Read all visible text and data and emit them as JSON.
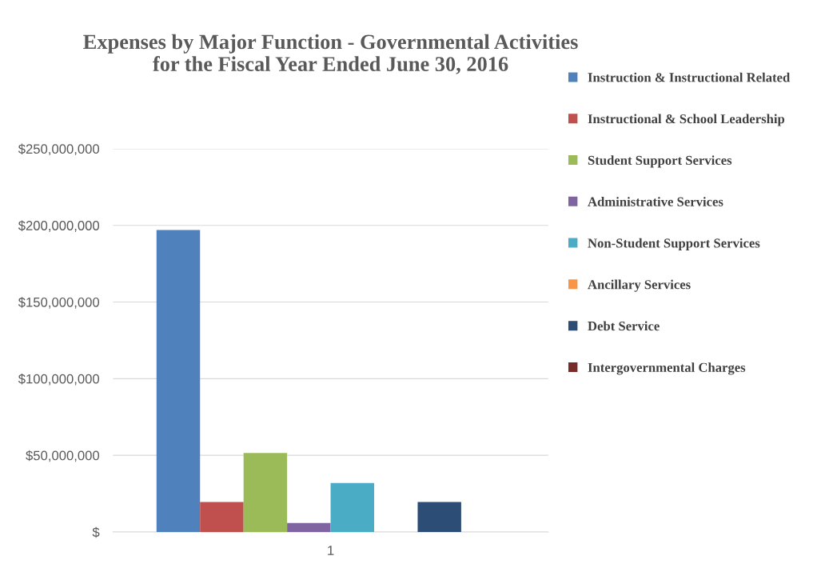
{
  "chart_data": {
    "type": "bar",
    "title": "Expenses by Major Function - Governmental Activities\nfor the Fiscal Year Ended June 30, 2016",
    "categories": [
      "1"
    ],
    "series": [
      {
        "name": "Instruction & Instructional Related",
        "color": "#4f81bd",
        "values": [
          197000000
        ]
      },
      {
        "name": "Instructional & School Leadership",
        "color": "#c0504d",
        "values": [
          19500000
        ]
      },
      {
        "name": "Student Support Services",
        "color": "#9bbb59",
        "values": [
          51500000
        ]
      },
      {
        "name": "Administrative Services",
        "color": "#8064a2",
        "values": [
          5800000
        ]
      },
      {
        "name": "Non-Student Support Services",
        "color": "#4bacc6",
        "values": [
          32000000
        ]
      },
      {
        "name": "Ancillary Services",
        "color": "#f79646",
        "values": [
          0
        ]
      },
      {
        "name": "Debt Service",
        "color": "#2c4d75",
        "values": [
          19500000
        ]
      },
      {
        "name": "Intergovernmental Charges",
        "color": "#772c2a",
        "values": [
          0
        ]
      }
    ],
    "ylim": [
      0,
      250000000
    ],
    "yticks": [
      {
        "value": 0,
        "label": "$"
      },
      {
        "value": 50000000,
        "label": "$50,000,000"
      },
      {
        "value": 100000000,
        "label": "$100,000,000"
      },
      {
        "value": 150000000,
        "label": "$150,000,000"
      },
      {
        "value": 200000000,
        "label": "$200,000,000"
      },
      {
        "value": 250000000,
        "label": "$250,000,000"
      }
    ],
    "grid": "y",
    "legend": "right"
  }
}
